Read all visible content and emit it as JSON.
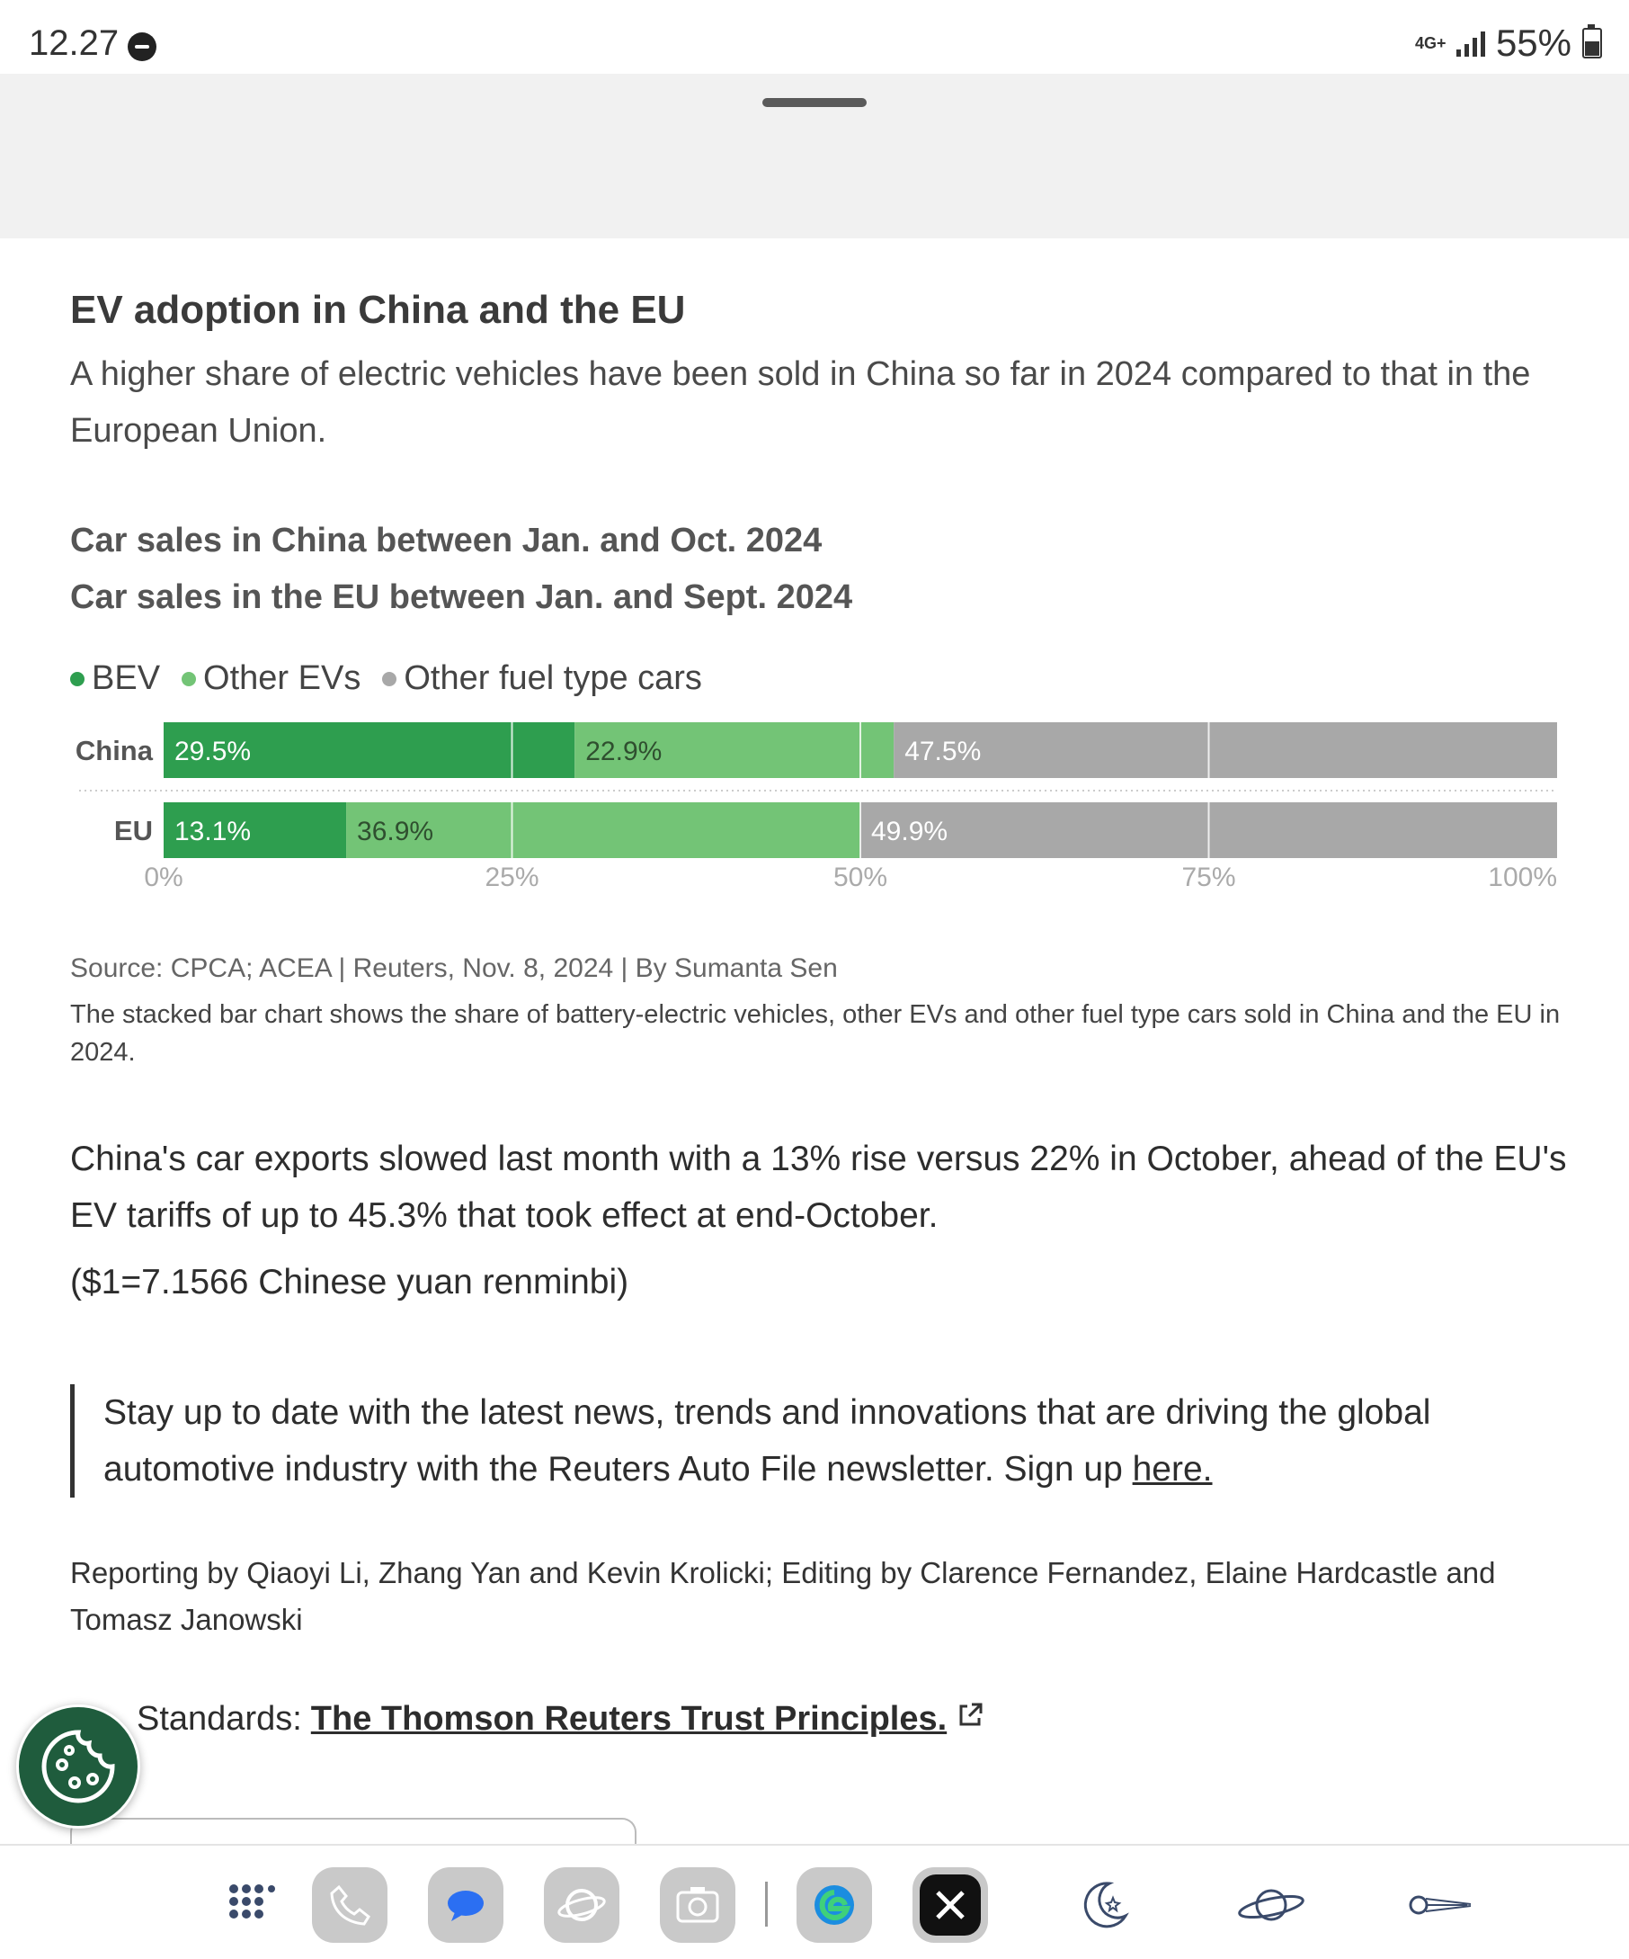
{
  "status_bar": {
    "time": "12.27",
    "network": "4G+",
    "battery": "55%"
  },
  "article": {
    "title": "EV adoption in China and the EU",
    "subtitle": "A higher share of electric vehicles have been sold in China so far in 2024 compared to that in the European Union.",
    "chart_heading_1": "Car sales in China between Jan. and Oct. 2024",
    "chart_heading_2": "Car sales in the EU between Jan. and Sept. 2024",
    "source": "Source: CPCA; ACEA | Reuters, Nov. 8, 2024 | By Sumanta Sen",
    "caption": "The stacked bar chart shows the share of battery-electric vehicles, other EVs and other fuel type cars sold in China and the EU in 2024.",
    "para1": "China's car exports slowed last month with a 13% rise versus 22% in October, ahead of the EU's EV tariffs of up to 45.3% that took effect at end-October.",
    "para2": "($1=7.1566 Chinese yuan renminbi)",
    "quote_text": "Stay up to date with the latest news, trends and innovations that are driving the global automotive industry with the Reuters Auto File newsletter. Sign up",
    "quote_link": "here.",
    "credits": "Reporting by Qiaoyi Li, Zhang Yan and Kevin Krolicki; Editing by Clarence Fernandez, Elaine Hardcastle and Tomasz Janowski",
    "standards_label": "Standards:",
    "standards_link": "The Thomson Reuters Trust Principles."
  },
  "colors": {
    "bev": "#2e9e4f",
    "other_ev": "#73c476",
    "other_fuel": "#a8a8a8"
  },
  "chart_data": {
    "type": "bar",
    "orientation": "horizontal",
    "stacked": true,
    "categories": [
      "China",
      "EU"
    ],
    "series": [
      {
        "name": "BEV",
        "values": [
          29.5,
          13.1
        ],
        "labels": [
          "29.5%",
          "13.1%"
        ]
      },
      {
        "name": "Other EVs",
        "values": [
          22.9,
          36.9
        ],
        "labels": [
          "22.9%",
          "36.9%"
        ]
      },
      {
        "name": "Other fuel type cars",
        "values": [
          47.5,
          49.9
        ],
        "labels": [
          "47.5%",
          "49.9%"
        ]
      }
    ],
    "xlim": [
      0,
      100
    ],
    "x_ticks": [
      0,
      25,
      50,
      75,
      100
    ],
    "x_tick_labels": [
      "0%",
      "25%",
      "50%",
      "75%",
      "100%"
    ],
    "legend_position": "top-left",
    "grid": true
  },
  "dock": {
    "apps": [
      "app-drawer-icon",
      "phone-icon",
      "messages-icon",
      "browser-icon",
      "camera-icon",
      "edge-icon",
      "x-icon",
      "night-mode-icon",
      "planet-icon",
      "comet-icon"
    ]
  }
}
